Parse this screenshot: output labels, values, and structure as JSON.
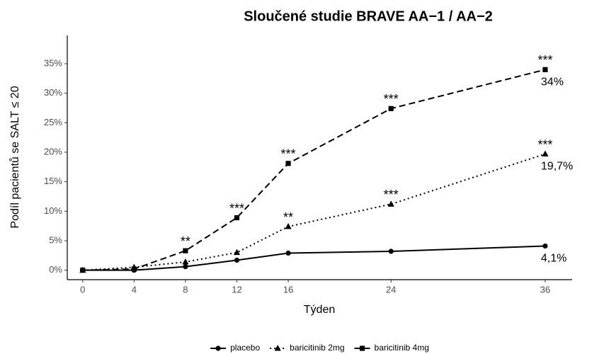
{
  "chart_data": {
    "type": "line",
    "title": "Sloučené studie BRAVE AA−1 / AA−2",
    "x_label": "Týden",
    "y_label": "Podíl pacientů se SALT ≤ 20",
    "x": [
      0,
      4,
      8,
      12,
      16,
      24,
      36
    ],
    "xlim": [
      -1.2,
      38.1
    ],
    "xticks": [
      0,
      4,
      8,
      12,
      16,
      24,
      36
    ],
    "ylim": [
      -1.6,
      39.8
    ],
    "yticks": [
      {
        "value": 0,
        "label": "0%"
      },
      {
        "value": 5,
        "label": "5%"
      },
      {
        "value": 10,
        "label": "10%"
      },
      {
        "value": 15,
        "label": "15%"
      },
      {
        "value": 20,
        "label": "20%"
      },
      {
        "value": 25,
        "label": "25%"
      },
      {
        "value": 30,
        "label": "30%"
      },
      {
        "value": 35,
        "label": "35%"
      }
    ],
    "grid": false,
    "legend": "bottom",
    "series": [
      {
        "name": "placebo",
        "color": "#000000",
        "dash": "solid",
        "marker": "circle",
        "values": [
          0,
          0,
          0.6,
          1.7,
          2.9,
          3.2,
          4.1
        ],
        "value_labels": [
          null,
          null,
          null,
          null,
          null,
          null,
          "4,1%"
        ],
        "annotations": [
          null,
          null,
          null,
          null,
          null,
          null,
          null
        ]
      },
      {
        "name": "baricitinib 2mg",
        "color": "#000000",
        "dash": "dotted",
        "marker": "triangle",
        "values": [
          0,
          0.5,
          1.4,
          3.0,
          7.4,
          11.2,
          19.7
        ],
        "value_labels": [
          null,
          null,
          null,
          null,
          null,
          null,
          "19,7%"
        ],
        "annotations": [
          null,
          null,
          null,
          null,
          "**",
          "***",
          "***"
        ]
      },
      {
        "name": "baricitinib 4mg",
        "color": "#000000",
        "dash": "dashed",
        "marker": "square",
        "values": [
          0,
          0.2,
          3.3,
          8.9,
          18.1,
          27.4,
          34
        ],
        "value_labels": [
          null,
          null,
          null,
          null,
          null,
          null,
          "34%"
        ],
        "annotations": [
          null,
          null,
          "**",
          "***",
          "***",
          "***",
          "***"
        ]
      }
    ]
  }
}
